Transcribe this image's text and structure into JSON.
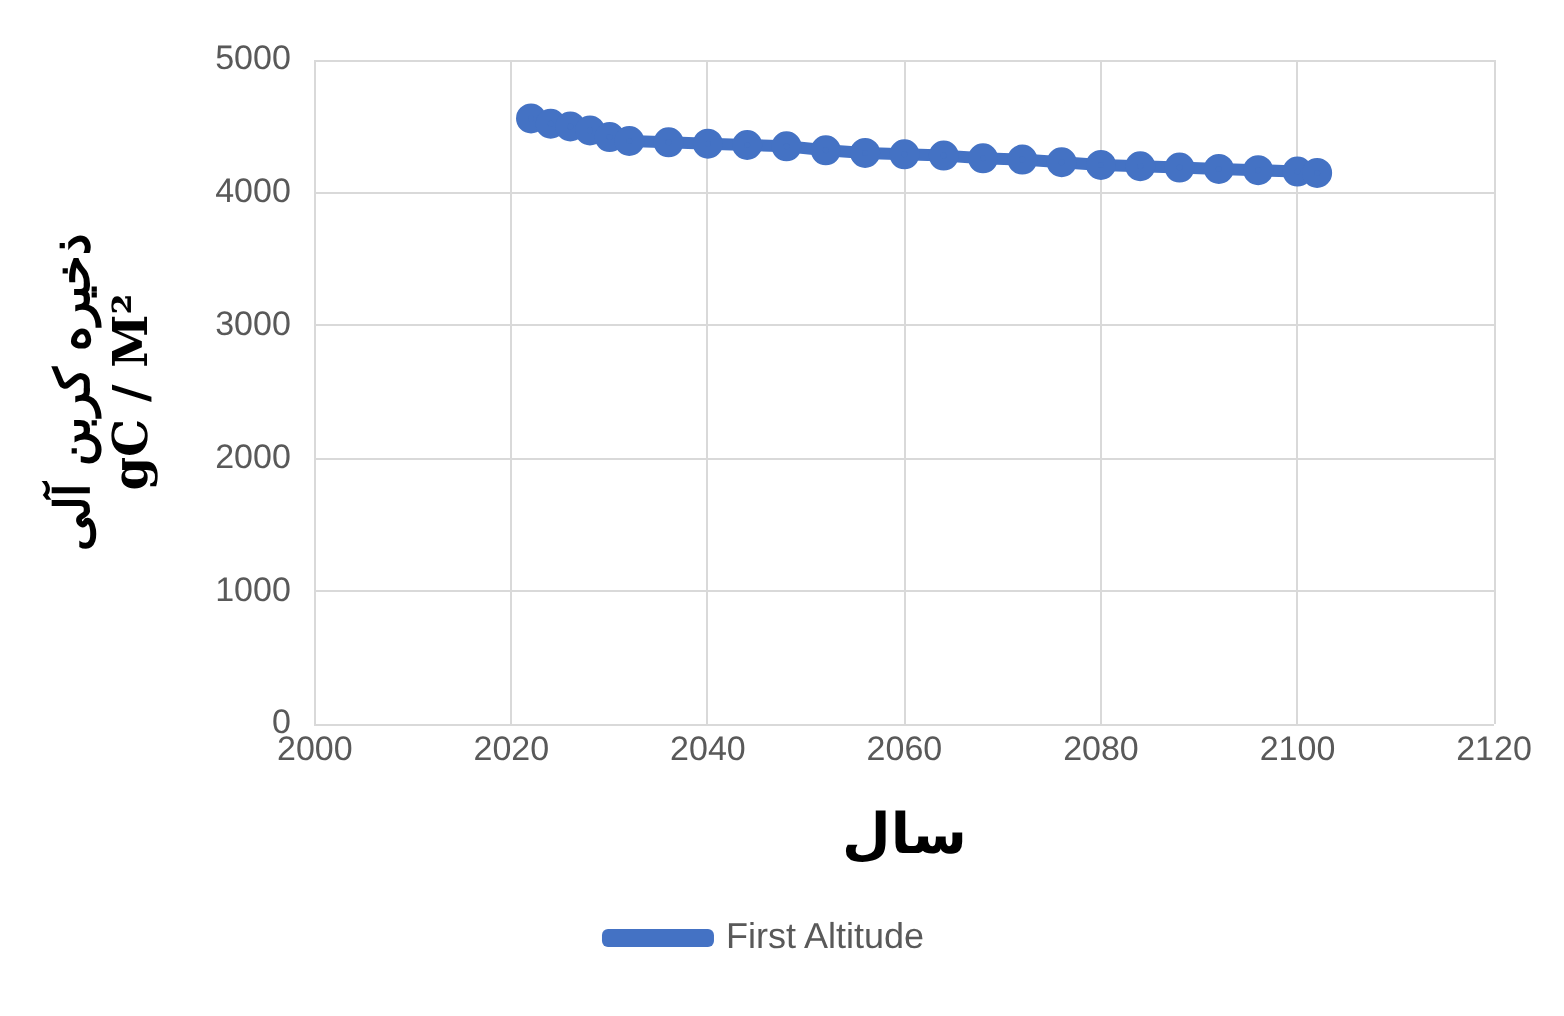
{
  "chart_data": {
    "type": "line",
    "xlabel": "سال",
    "ylabel": "ذخیره کربن آلی\ngC / M²",
    "series": [
      {
        "name": "First Altitude",
        "color": "#4472c4",
        "x": [
          2022,
          2024,
          2026,
          2028,
          2030,
          2032,
          2036,
          2040,
          2044,
          2048,
          2052,
          2056,
          2060,
          2064,
          2068,
          2072,
          2076,
          2080,
          2084,
          2088,
          2092,
          2096,
          2100,
          2102
        ],
        "values": [
          4560,
          4520,
          4500,
          4470,
          4420,
          4390,
          4380,
          4370,
          4360,
          4350,
          4320,
          4300,
          4290,
          4280,
          4260,
          4250,
          4230,
          4210,
          4200,
          4190,
          4180,
          4170,
          4160,
          4150
        ]
      }
    ],
    "xlim": [
      2000,
      2120
    ],
    "xticks": [
      2000,
      2020,
      2040,
      2060,
      2080,
      2100,
      2120
    ],
    "ylim": [
      0,
      5000
    ],
    "yticks": [
      0,
      1000,
      2000,
      3000,
      4000,
      5000
    ],
    "grid": true,
    "legend": "bottom",
    "marker": "circle",
    "line_style": "solid"
  }
}
